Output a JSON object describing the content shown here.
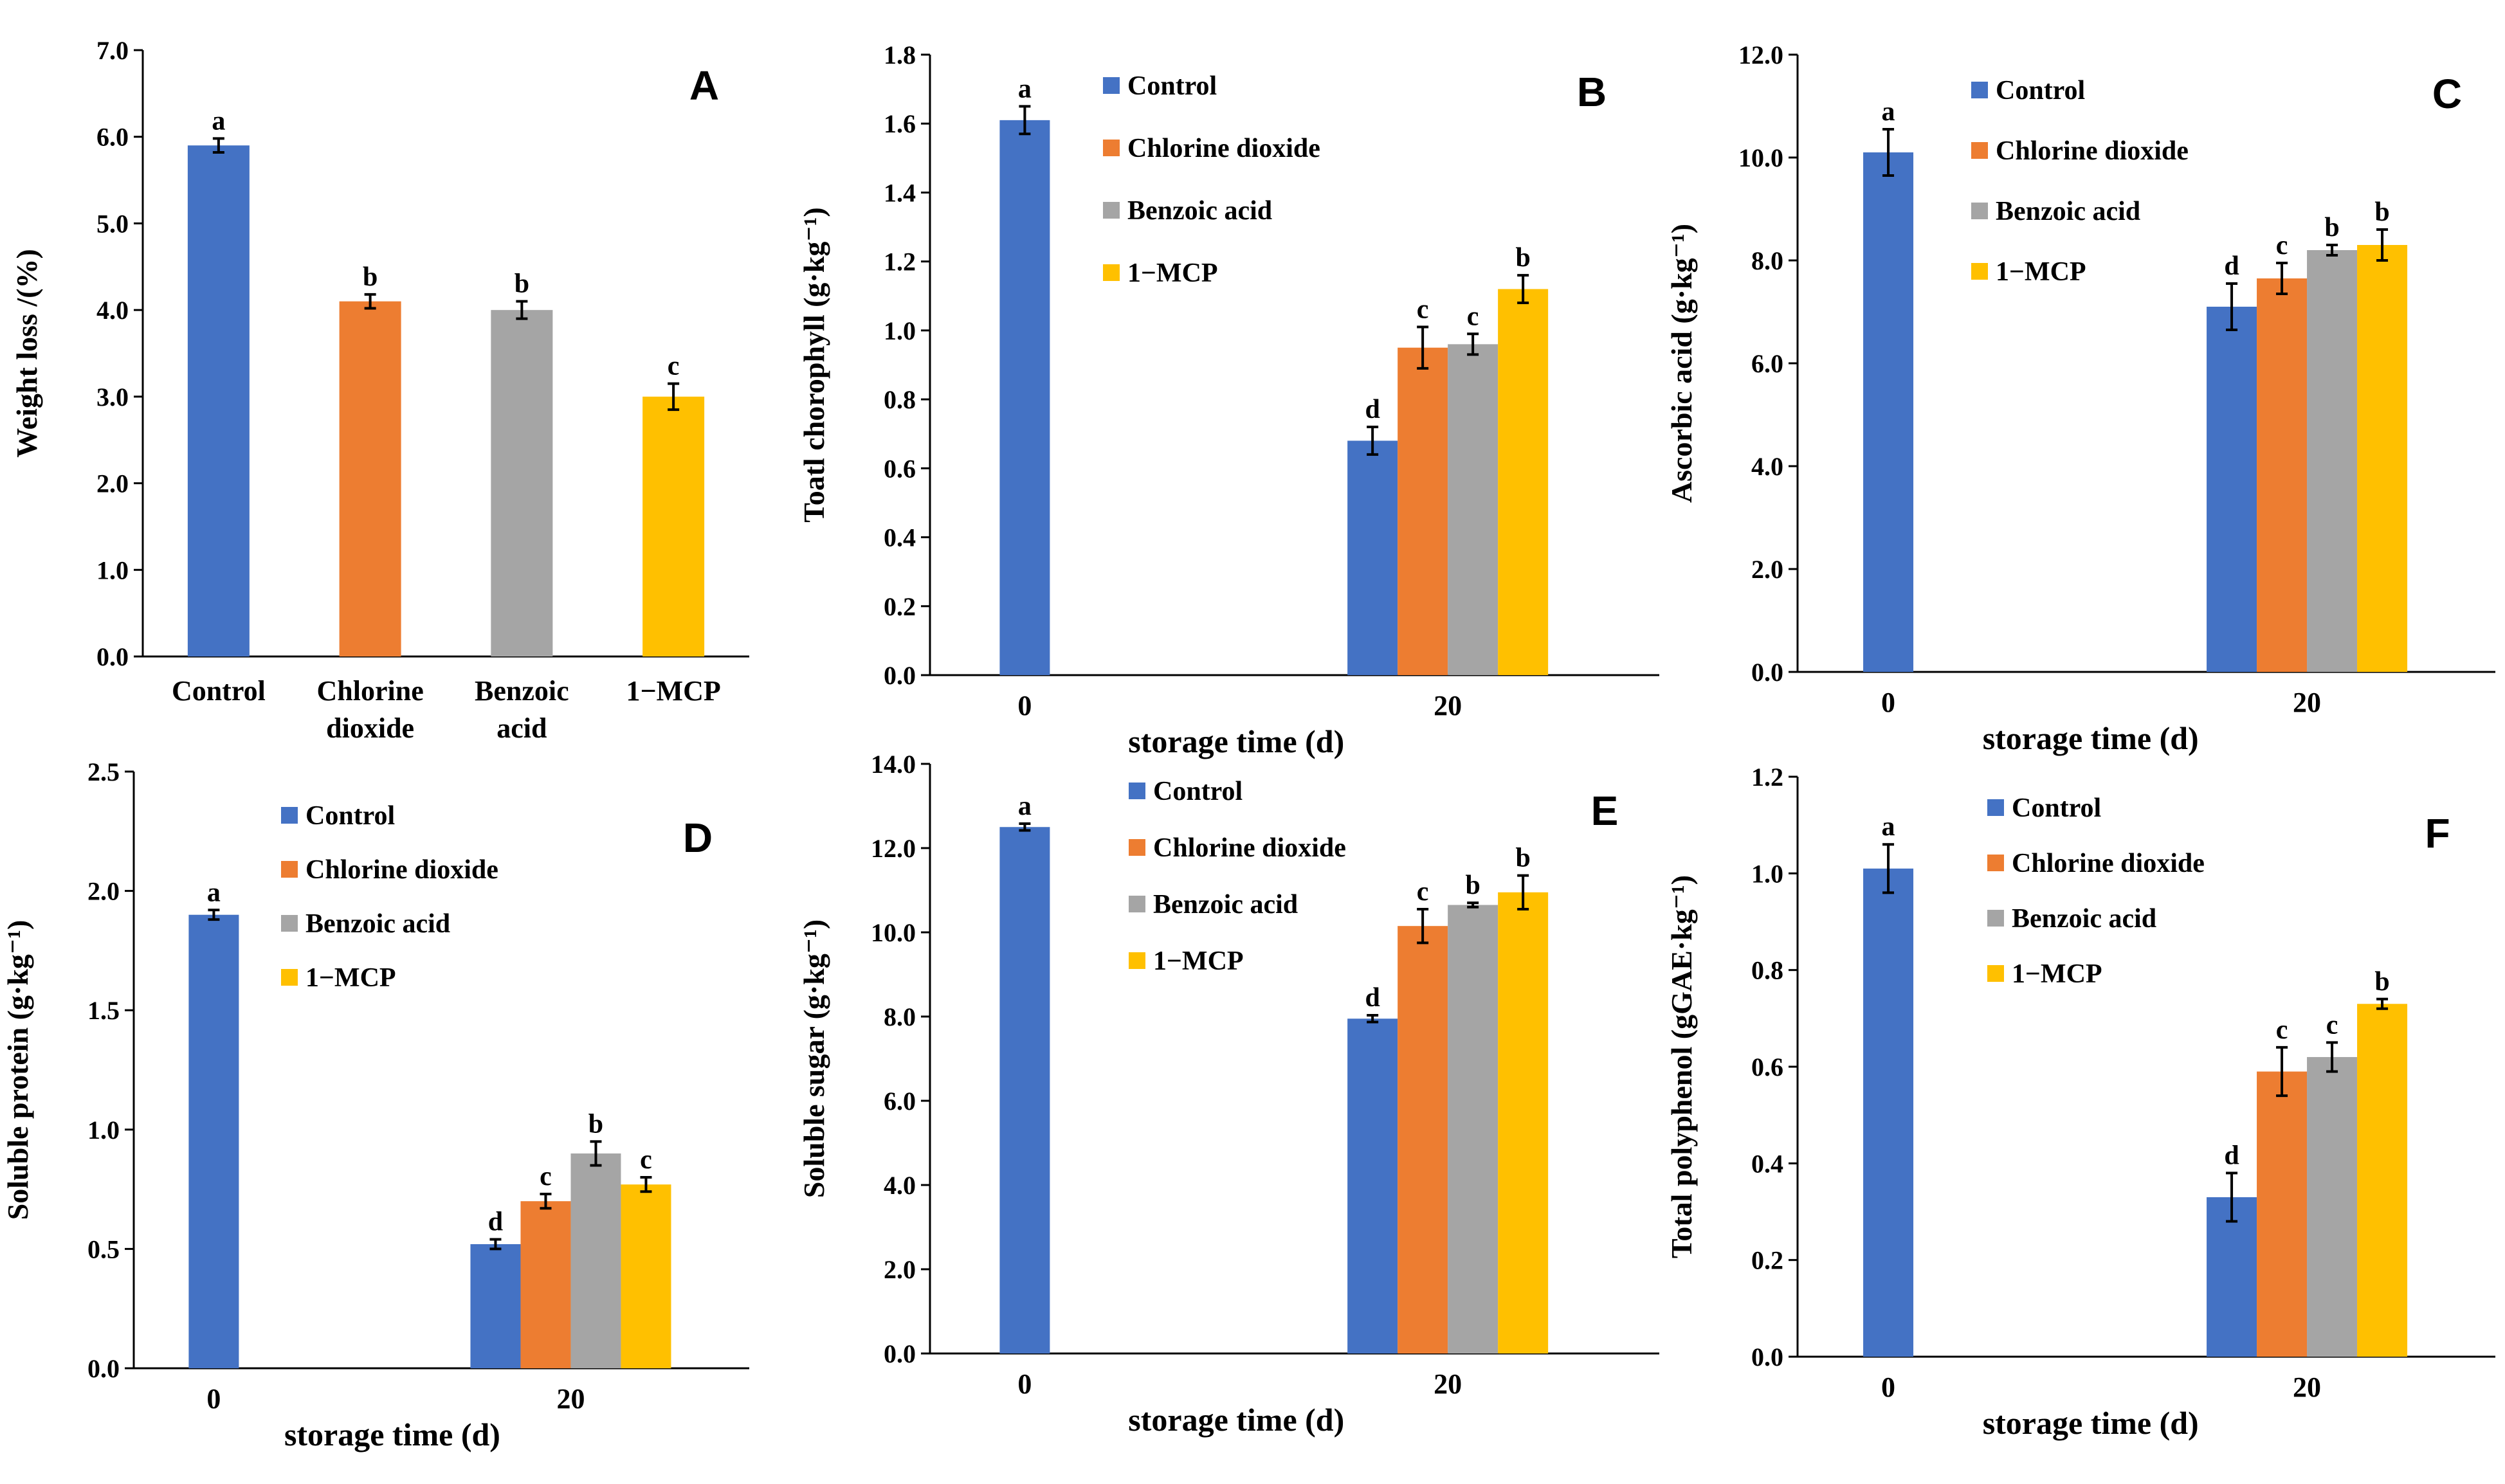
{
  "colors": {
    "Control": "#4472C4",
    "Chlorine dioxide": "#ED7D31",
    "Benzoic acid": "#A5A5A5",
    "1−MCP": "#FFC000"
  },
  "chart_data": [
    {
      "id": "A",
      "type": "bar",
      "panel_label": "A",
      "ylabel": "Weight loss /(%)",
      "xlabel": "",
      "ylim": [
        0,
        7
      ],
      "ystep": 1,
      "decimals": 1,
      "categories": [
        "Control",
        "Chlorine dioxide",
        "Benzoic acid",
        "1−MCP"
      ],
      "category_lines": [
        [
          "Control"
        ],
        [
          "Chlorine",
          "dioxide"
        ],
        [
          "Benzoic",
          "acid"
        ],
        [
          "1−MCP"
        ]
      ],
      "values": [
        5.9,
        4.1,
        4.0,
        3.0
      ],
      "errors": [
        0.08,
        0.08,
        0.1,
        0.15
      ],
      "letters": [
        "a",
        "b",
        "b",
        "c"
      ]
    },
    {
      "id": "B",
      "type": "bar",
      "panel_label": "B",
      "ylabel": "Toatl chorophyll (g·kg⁻¹)",
      "xlabel": "storage time (d)",
      "ylim": [
        0,
        1.8
      ],
      "ystep": 0.2,
      "decimals": 1,
      "groups": [
        "0",
        "20"
      ],
      "legend": [
        "Control",
        "Chlorine dioxide",
        "Benzoic acid",
        "1−MCP"
      ],
      "series": [
        {
          "name": "Control",
          "values": [
            1.61,
            0.68
          ],
          "errors": [
            0.04,
            0.04
          ],
          "letters": [
            "a",
            "d"
          ]
        },
        {
          "name": "Chlorine dioxide",
          "values": [
            null,
            0.95
          ],
          "errors": [
            null,
            0.06
          ],
          "letters": [
            null,
            "c"
          ]
        },
        {
          "name": "Benzoic acid",
          "values": [
            null,
            0.96
          ],
          "errors": [
            null,
            0.03
          ],
          "letters": [
            null,
            "c"
          ]
        },
        {
          "name": "1−MCP",
          "values": [
            null,
            1.12
          ],
          "errors": [
            null,
            0.04
          ],
          "letters": [
            null,
            "b"
          ]
        }
      ]
    },
    {
      "id": "C",
      "type": "bar",
      "panel_label": "C",
      "ylabel": "Ascorbic acid (g·kg⁻¹)",
      "xlabel": "storage time (d)",
      "ylim": [
        0,
        12
      ],
      "ystep": 2,
      "decimals": 1,
      "groups": [
        "0",
        "20"
      ],
      "legend": [
        "Control",
        "Chlorine dioxide",
        "Benzoic acid",
        "1−MCP"
      ],
      "series": [
        {
          "name": "Control",
          "values": [
            10.1,
            7.1
          ],
          "errors": [
            0.45,
            0.45
          ],
          "letters": [
            "a",
            "d"
          ]
        },
        {
          "name": "Chlorine dioxide",
          "values": [
            null,
            7.65
          ],
          "errors": [
            null,
            0.3
          ],
          "letters": [
            null,
            "c"
          ]
        },
        {
          "name": "Benzoic acid",
          "values": [
            null,
            8.2
          ],
          "errors": [
            null,
            0.1
          ],
          "letters": [
            null,
            "b"
          ]
        },
        {
          "name": "1−MCP",
          "values": [
            null,
            8.3
          ],
          "errors": [
            null,
            0.3
          ],
          "letters": [
            null,
            "b"
          ]
        }
      ]
    },
    {
      "id": "D",
      "type": "bar",
      "panel_label": "D",
      "ylabel": "Soluble protein (g·kg⁻¹)",
      "xlabel": "storage time (d)",
      "ylim": [
        0,
        2.5
      ],
      "ystep": 0.5,
      "decimals": 1,
      "groups": [
        "0",
        "20"
      ],
      "legend": [
        "Control",
        "Chlorine dioxide",
        "Benzoic acid",
        "1−MCP"
      ],
      "series": [
        {
          "name": "Control",
          "values": [
            1.9,
            0.52
          ],
          "errors": [
            0.02,
            0.02
          ],
          "letters": [
            "a",
            "d"
          ]
        },
        {
          "name": "Chlorine dioxide",
          "values": [
            null,
            0.7
          ],
          "errors": [
            null,
            0.03
          ],
          "letters": [
            null,
            "c"
          ]
        },
        {
          "name": "Benzoic acid",
          "values": [
            null,
            0.9
          ],
          "errors": [
            null,
            0.05
          ],
          "letters": [
            null,
            "b"
          ]
        },
        {
          "name": "1−MCP",
          "values": [
            null,
            0.77
          ],
          "errors": [
            null,
            0.03
          ],
          "letters": [
            null,
            "c"
          ]
        }
      ]
    },
    {
      "id": "E",
      "type": "bar",
      "panel_label": "E",
      "ylabel": "Soluble sugar (g·kg⁻¹)",
      "xlabel": "storage time (d)",
      "ylim": [
        0,
        14
      ],
      "ystep": 2,
      "decimals": 1,
      "groups": [
        "0",
        "20"
      ],
      "legend": [
        "Control",
        "Chlorine dioxide",
        "Benzoic acid",
        "1−MCP"
      ],
      "series": [
        {
          "name": "Control",
          "values": [
            12.5,
            7.95
          ],
          "errors": [
            0.08,
            0.08
          ],
          "letters": [
            "a",
            "d"
          ]
        },
        {
          "name": "Chlorine dioxide",
          "values": [
            null,
            10.15
          ],
          "errors": [
            null,
            0.4
          ],
          "letters": [
            null,
            "c"
          ]
        },
        {
          "name": "Benzoic acid",
          "values": [
            null,
            10.65
          ],
          "errors": [
            null,
            0.05
          ],
          "letters": [
            null,
            "b"
          ]
        },
        {
          "name": "1−MCP",
          "values": [
            null,
            10.95
          ],
          "errors": [
            null,
            0.4
          ],
          "letters": [
            null,
            "b"
          ]
        }
      ]
    },
    {
      "id": "F",
      "type": "bar",
      "panel_label": "F",
      "ylabel": "Total polyphenol (gGAE·kg⁻¹)",
      "xlabel": "storage time (d)",
      "ylim": [
        0,
        1.2
      ],
      "ystep": 0.2,
      "decimals": 1,
      "groups": [
        "0",
        "20"
      ],
      "legend": [
        "Control",
        "Chlorine dioxide",
        "Benzoic acid",
        "1−MCP"
      ],
      "series": [
        {
          "name": "Control",
          "values": [
            1.01,
            0.33
          ],
          "errors": [
            0.05,
            0.05
          ],
          "letters": [
            "a",
            "d"
          ]
        },
        {
          "name": "Chlorine dioxide",
          "values": [
            null,
            0.59
          ],
          "errors": [
            null,
            0.05
          ],
          "letters": [
            null,
            "c"
          ]
        },
        {
          "name": "Benzoic acid",
          "values": [
            null,
            0.62
          ],
          "errors": [
            null,
            0.03
          ],
          "letters": [
            null,
            "c"
          ]
        },
        {
          "name": "1−MCP",
          "values": [
            null,
            0.73
          ],
          "errors": [
            null,
            0.01
          ],
          "letters": [
            null,
            "b"
          ]
        }
      ]
    }
  ]
}
